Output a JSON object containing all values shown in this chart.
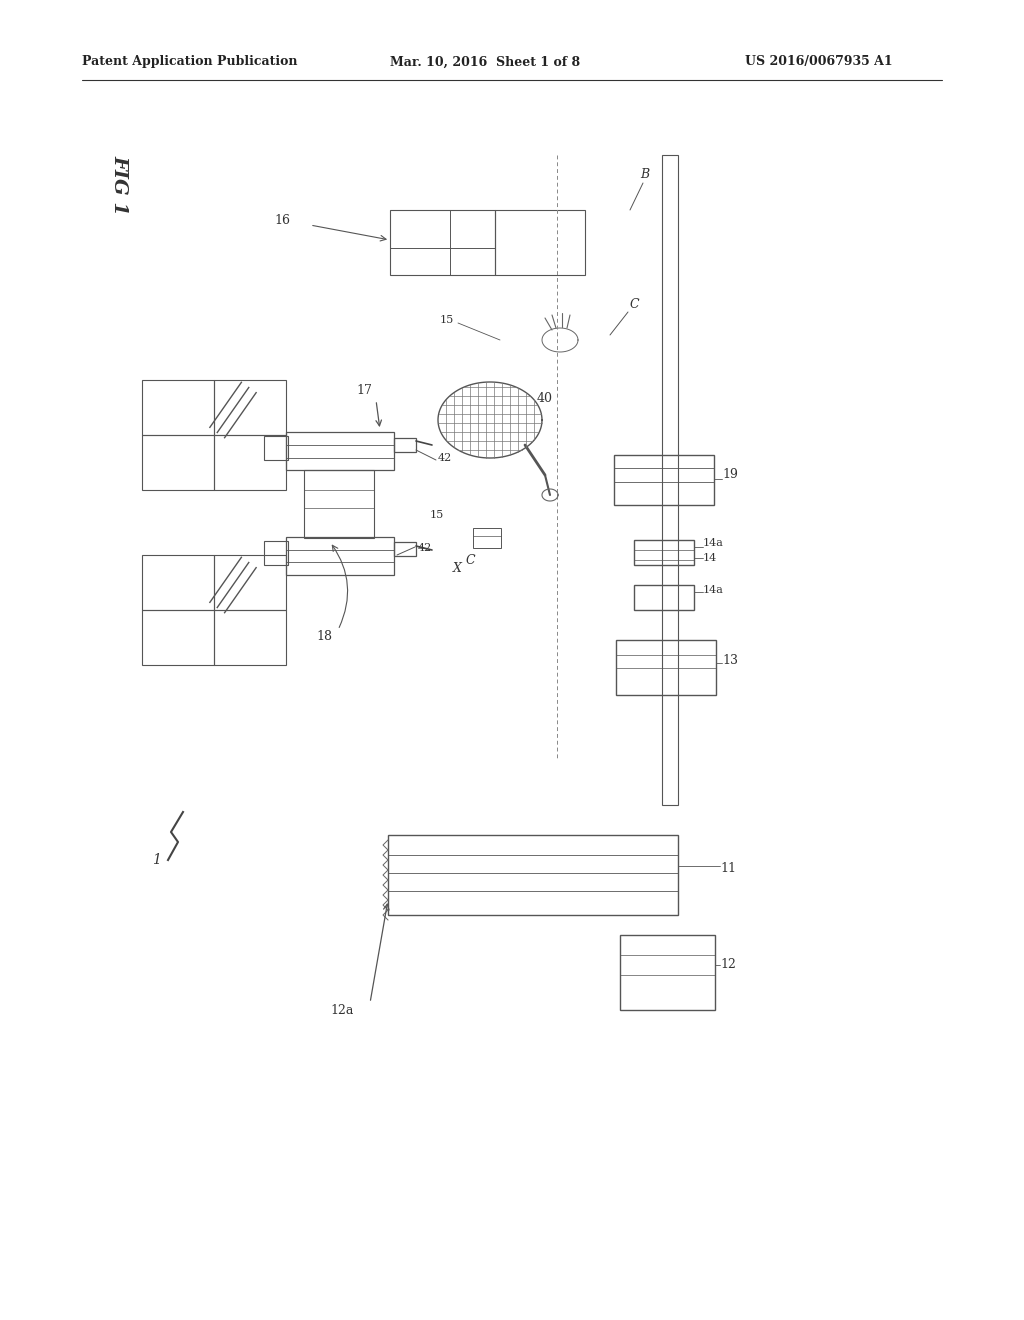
{
  "background_color": "#ffffff",
  "header_left": "Patent Application Publication",
  "header_center": "Mar. 10, 2016  Sheet 1 of 8",
  "header_right": "US 2016/0067935 A1"
}
